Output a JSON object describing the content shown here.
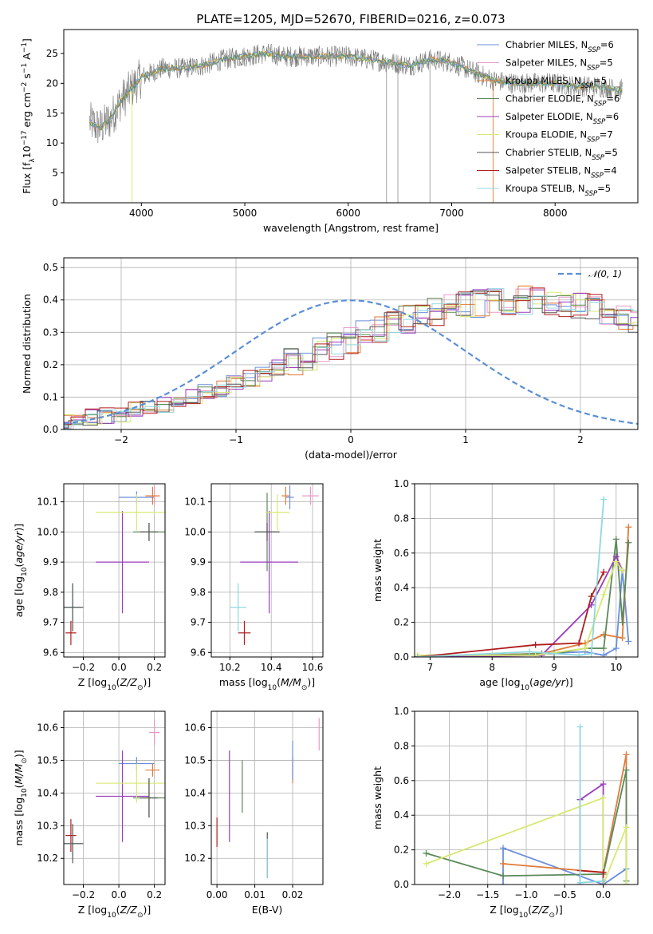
{
  "figure": {
    "title": "PLATE=1205, MJD=52670, FIBERID=0216, z=0.073"
  },
  "models": [
    {
      "label": "Chabrier MILES, N_SSP=6",
      "label_main": "Chabrier MILES, N",
      "label_sub": "SSP",
      "label_tail": "=6",
      "color": "#6a8fdc"
    },
    {
      "label": "Salpeter MILES, N_SSP=5",
      "label_main": "Salpeter MILES, N",
      "label_sub": "SSP",
      "label_tail": "=5",
      "color": "#e89ac8"
    },
    {
      "label": "Kroupa MILES, N_SSP=5",
      "label_main": "Kroupa MILES, N",
      "label_sub": "SSP",
      "label_tail": "=5",
      "color": "#e07b39"
    },
    {
      "label": "Chabrier ELODIE, N_SSP=6",
      "label_main": "Chabrier ELODIE, N",
      "label_sub": "SSP",
      "label_tail": "=6",
      "color": "#5b8a5a"
    },
    {
      "label": "Salpeter ELODIE, N_SSP=6",
      "label_main": "Salpeter ELODIE, N",
      "label_sub": "SSP",
      "label_tail": "=6",
      "color": "#9a3dbf"
    },
    {
      "label": "Kroupa ELODIE, N_SSP=7",
      "label_main": "Kroupa ELODIE, N",
      "label_sub": "SSP",
      "label_tail": "=7",
      "color": "#d8e870"
    },
    {
      "label": "Chabrier STELIB, N_SSP=5",
      "label_main": "Chabrier STELIB, N",
      "label_sub": "SSP",
      "label_tail": "=5",
      "color": "#555555"
    },
    {
      "label": "Salpeter STELIB, N_SSP=4",
      "label_main": "Salpeter STELIB, N",
      "label_sub": "SSP",
      "label_tail": "=4",
      "color": "#b01c1c"
    },
    {
      "label": "Kroupa STELIB, N_SSP=5",
      "label_main": "Kroupa STELIB, N",
      "label_sub": "SSP",
      "label_tail": "=5",
      "color": "#8fd8e0"
    }
  ],
  "chart_data": [
    {
      "id": "spectrum",
      "type": "line",
      "title": "PLATE=1205, MJD=52670, FIBERID=0216, z=0.073",
      "xlabel": "wavelength [Angstrom, rest frame]",
      "ylabel": "Flux [f_λ10^-17 erg cm^-2 s^-1 A^-1]",
      "xlim": [
        3250,
        8800
      ],
      "ylim": [
        0,
        29
      ],
      "xticks": [
        4000,
        5000,
        6000,
        7000,
        8000
      ],
      "yticks": [
        0,
        5,
        10,
        15,
        20,
        25
      ],
      "grid": false,
      "legend": "upper right",
      "continuum": {
        "x": [
          3500,
          3600,
          3700,
          3800,
          3900,
          4000,
          4200,
          4400,
          4600,
          4800,
          5000,
          5200,
          5400,
          5600,
          5800,
          6000,
          6200,
          6400,
          6600,
          6800,
          7000,
          7200,
          7400,
          7600,
          7800,
          8000,
          8200,
          8400,
          8600
        ],
        "y": [
          13.5,
          12.5,
          14,
          17,
          19,
          21,
          22.5,
          22.5,
          23,
          24,
          24.5,
          25,
          24.5,
          24.5,
          24.5,
          24.5,
          24,
          23.5,
          23,
          24,
          23.5,
          22,
          20.5,
          20,
          20,
          20,
          19.5,
          19.5,
          19
        ]
      }
    },
    {
      "id": "residuals",
      "type": "histogram",
      "xlabel": "(data-model)/error",
      "ylabel": "Normed distribution",
      "xlim": [
        -2.5,
        2.5
      ],
      "ylim": [
        0,
        0.53
      ],
      "xticks": [
        -2,
        -1,
        0,
        1,
        2
      ],
      "yticks": [
        0.0,
        0.1,
        0.2,
        0.3,
        0.4,
        0.5
      ],
      "grid": true,
      "legend": "upper right",
      "reference_curve": {
        "label": "𝒩(0, 1)",
        "color": "#5b8fd6"
      },
      "bin_width": 0.125,
      "hist_template": [
        0.027,
        0.032,
        0.037,
        0.044,
        0.05,
        0.058,
        0.066,
        0.076,
        0.087,
        0.099,
        0.112,
        0.126,
        0.14,
        0.156,
        0.172,
        0.189,
        0.206,
        0.224,
        0.241,
        0.259,
        0.276,
        0.293,
        0.309,
        0.324,
        0.339,
        0.352,
        0.364,
        0.375,
        0.384,
        0.391,
        0.396,
        0.399,
        0.4,
        0.399,
        0.396,
        0.391,
        0.384,
        0.375,
        0.364,
        0.352,
        0.339,
        0.324,
        0.309,
        0.293,
        0.276,
        0.259,
        0.241,
        0.224,
        0.206,
        0.189,
        0.172,
        0.156,
        0.14,
        0.126,
        0.112,
        0.099,
        0.087,
        0.076,
        0.066,
        0.058,
        0.05,
        0.044,
        0.037,
        0.032,
        0.027
      ]
    },
    {
      "id": "age-vs-Z",
      "type": "scatter",
      "xlabel": "Z [log10(Z/Z⊙)]",
      "ylabel": "age [log10(age/yr)]",
      "xlim": [
        -0.31,
        0.26
      ],
      "ylim": [
        9.585,
        10.16
      ],
      "xticks": [
        -0.2,
        0.0,
        0.2
      ],
      "yticks": [
        9.6,
        9.7,
        9.8,
        9.9,
        10.0,
        10.1
      ],
      "grid": true,
      "points": [
        {
          "model": 0,
          "x": 0.1,
          "y": 10.115,
          "xerr": 0.1,
          "yerr": 0.02
        },
        {
          "model": 1,
          "x": 0.2,
          "y": 10.12,
          "xerr": 0.03,
          "yerr": 0.03
        },
        {
          "model": 2,
          "x": 0.19,
          "y": 10.12,
          "xerr": 0.04,
          "yerr": 0.03
        },
        {
          "model": 3,
          "x": 0.17,
          "y": 10.0,
          "xerr": 0.09,
          "yerr": 0.03
        },
        {
          "model": 4,
          "x": 0.02,
          "y": 9.9,
          "xerr": 0.15,
          "yerr": 0.17
        },
        {
          "model": 5,
          "x": 0.1,
          "y": 10.065,
          "xerr": 0.23,
          "yerr": 0.06
        },
        {
          "model": 6,
          "x": 0.17,
          "y": 10.0,
          "xerr": 0.05,
          "yerr": 0.03
        },
        {
          "model": 7,
          "x": -0.27,
          "y": 9.665,
          "xerr": 0.03,
          "yerr": 0.04
        },
        {
          "model": 8,
          "x": -0.26,
          "y": 9.75,
          "xerr": 0.05,
          "yerr": 0.08
        },
        {
          "model": 6,
          "x": -0.26,
          "y": 9.75,
          "xerr": 0.06,
          "yerr": 0.08
        }
      ]
    },
    {
      "id": "age-vs-mass",
      "type": "scatter",
      "xlabel": "mass [log10(M/M⊙)]",
      "ylabel": "",
      "xlim": [
        10.11,
        10.65
      ],
      "ylim": [
        9.585,
        10.16
      ],
      "xticks": [
        10.2,
        10.4,
        10.6
      ],
      "yticks": [
        9.6,
        9.7,
        9.8,
        9.9,
        10.0,
        10.1
      ],
      "grid": true,
      "points": [
        {
          "model": 0,
          "x": 10.49,
          "y": 10.115,
          "xerr": 0.02,
          "yerr": 0.04
        },
        {
          "model": 1,
          "x": 10.59,
          "y": 10.12,
          "xerr": 0.04,
          "yerr": 0.03
        },
        {
          "model": 2,
          "x": 10.47,
          "y": 10.12,
          "xerr": 0.02,
          "yerr": 0.03
        },
        {
          "model": 3,
          "x": 10.38,
          "y": 10.0,
          "xerr": 0.06,
          "yerr": 0.13
        },
        {
          "model": 4,
          "x": 10.39,
          "y": 9.9,
          "xerr": 0.14,
          "yerr": 0.17
        },
        {
          "model": 5,
          "x": 10.43,
          "y": 10.065,
          "xerr": 0.06,
          "yerr": 0.06
        },
        {
          "model": 6,
          "x": 10.38,
          "y": 10.0,
          "xerr": 0.06,
          "yerr": 0.03
        },
        {
          "model": 7,
          "x": 10.27,
          "y": 9.665,
          "xerr": 0.03,
          "yerr": 0.04
        },
        {
          "model": 8,
          "x": 10.24,
          "y": 9.75,
          "xerr": 0.04,
          "yerr": 0.08
        }
      ]
    },
    {
      "id": "weight-vs-age",
      "type": "line",
      "xlabel": "age [log10(age/yr)]",
      "ylabel": "mass weight",
      "xlim": [
        6.75,
        10.35
      ],
      "ylim": [
        0,
        1.0
      ],
      "xticks": [
        7,
        8,
        9,
        10
      ],
      "yticks": [
        0.0,
        0.2,
        0.4,
        0.6,
        0.8,
        1.0
      ],
      "grid": true,
      "series": [
        {
          "model": 0,
          "x": [
            6.8,
            8.8,
            9.5,
            9.8,
            10.0,
            10.1,
            10.2
          ],
          "y": [
            0.0,
            0.02,
            0.03,
            0.01,
            0.05,
            0.5,
            0.09
          ]
        },
        {
          "model": 2,
          "x": [
            6.8,
            8.8,
            9.5,
            9.8,
            10.1,
            10.2
          ],
          "y": [
            0.0,
            0.02,
            0.08,
            0.13,
            0.11,
            0.75
          ]
        },
        {
          "model": 3,
          "x": [
            6.8,
            9.0,
            9.5,
            9.8,
            10.0,
            10.1,
            10.2
          ],
          "y": [
            0.0,
            0.02,
            0.05,
            0.05,
            0.68,
            0.2,
            0.66
          ]
        },
        {
          "model": 4,
          "x": [
            6.8,
            8.8,
            9.6,
            10.0,
            10.1
          ],
          "y": [
            0.0,
            0.01,
            0.3,
            0.58,
            0.5
          ]
        },
        {
          "model": 5,
          "x": [
            6.8,
            8.7,
            9.5,
            9.8,
            10.0,
            10.1
          ],
          "y": [
            0.01,
            0.01,
            0.05,
            0.36,
            0.55,
            0.5
          ]
        },
        {
          "model": 7,
          "x": [
            6.8,
            8.7,
            9.4,
            9.6,
            9.8
          ],
          "y": [
            0.0,
            0.07,
            0.08,
            0.35,
            0.49
          ]
        },
        {
          "model": 8,
          "x": [
            6.8,
            8.6,
            9.4,
            9.6,
            9.8
          ],
          "y": [
            0.0,
            0.03,
            0.01,
            0.02,
            0.91
          ]
        }
      ]
    },
    {
      "id": "mass-vs-Z",
      "type": "scatter",
      "xlabel": "Z [log10(Z/Z⊙)]",
      "ylabel": "mass [log10(M/M⊙)]",
      "xlim": [
        -0.31,
        0.26
      ],
      "ylim": [
        10.12,
        10.65
      ],
      "xticks": [
        -0.2,
        0.0,
        0.2
      ],
      "yticks": [
        10.2,
        10.3,
        10.4,
        10.5,
        10.6
      ],
      "grid": true,
      "points": [
        {
          "model": 0,
          "x": 0.1,
          "y": 10.49,
          "xerr": 0.1,
          "yerr": 0.02
        },
        {
          "model": 1,
          "x": 0.2,
          "y": 10.585,
          "xerr": 0.03,
          "yerr": 0.04
        },
        {
          "model": 2,
          "x": 0.19,
          "y": 10.47,
          "xerr": 0.04,
          "yerr": 0.02
        },
        {
          "model": 3,
          "x": 0.17,
          "y": 10.385,
          "xerr": 0.09,
          "yerr": 0.06
        },
        {
          "model": 4,
          "x": 0.02,
          "y": 10.39,
          "xerr": 0.15,
          "yerr": 0.14
        },
        {
          "model": 5,
          "x": 0.1,
          "y": 10.43,
          "xerr": 0.23,
          "yerr": 0.06
        },
        {
          "model": 6,
          "x": 0.17,
          "y": 10.385,
          "xerr": 0.05,
          "yerr": 0.06
        },
        {
          "model": 7,
          "x": -0.27,
          "y": 10.27,
          "xerr": 0.03,
          "yerr": 0.05
        },
        {
          "model": 8,
          "x": -0.26,
          "y": 10.245,
          "xerr": 0.05,
          "yerr": 0.04
        },
        {
          "model": 6,
          "x": -0.26,
          "y": 10.245,
          "xerr": 0.06,
          "yerr": 0.06
        }
      ]
    },
    {
      "id": "mass-vs-EBV",
      "type": "scatter",
      "xlabel": "E(B-V)",
      "ylabel": "",
      "xlim": [
        -0.0015,
        0.028
      ],
      "ylim": [
        10.12,
        10.65
      ],
      "xticks": [
        0.0,
        0.01,
        0.02
      ],
      "xtick_labels": [
        "0.00",
        "0.01",
        "0.02"
      ],
      "yticks": [
        10.2,
        10.3,
        10.4,
        10.5,
        10.6
      ],
      "grid": true,
      "points": [
        {
          "model": 7,
          "x": 0.0,
          "y": 10.28,
          "xerr": 0,
          "yerr": 0.045
        },
        {
          "model": 4,
          "x": 0.0033,
          "y": 10.39,
          "xerr": 0,
          "yerr": 0.14
        },
        {
          "model": 5,
          "x": 0.0067,
          "y": 10.41,
          "xerr": 0,
          "yerr": 0.07
        },
        {
          "model": 3,
          "x": 0.0067,
          "y": 10.42,
          "xerr": 0,
          "yerr": 0.08
        },
        {
          "model": 6,
          "x": 0.0133,
          "y": 10.21,
          "xerr": 0,
          "yerr": 0.07
        },
        {
          "model": 8,
          "x": 0.0133,
          "y": 10.2,
          "xerr": 0,
          "yerr": 0.06
        },
        {
          "model": 2,
          "x": 0.02,
          "y": 10.47,
          "xerr": 0,
          "yerr": 0.04
        },
        {
          "model": 0,
          "x": 0.02,
          "y": 10.5,
          "xerr": 0,
          "yerr": 0.06
        },
        {
          "model": 1,
          "x": 0.027,
          "y": 10.58,
          "xerr": 0,
          "yerr": 0.05
        }
      ]
    },
    {
      "id": "weight-vs-Z",
      "type": "line",
      "xlabel": "Z [log10(Z/Z⊙)]",
      "ylabel": "mass weight",
      "xlim": [
        -2.45,
        0.45
      ],
      "ylim": [
        0,
        1.0
      ],
      "xticks": [
        -2.0,
        -1.5,
        -1.0,
        -0.5,
        0.0
      ],
      "xtick_labels": [
        "−2.0",
        "−1.5",
        "−1.0",
        "−0.5",
        "0.0"
      ],
      "yticks": [
        0.0,
        0.2,
        0.4,
        0.6,
        0.8,
        1.0
      ],
      "grid": true,
      "series": [
        {
          "model": 0,
          "x": [
            -1.3,
            -1.3,
            0.0,
            0.3,
            0.3
          ],
          "y": [
            0.0,
            0.21,
            0.0,
            0.09,
            0.0
          ]
        },
        {
          "model": 2,
          "x": [
            -1.3,
            0.0,
            0.3,
            0.3
          ],
          "y": [
            0.12,
            0.07,
            0.75,
            0.0
          ]
        },
        {
          "model": 3,
          "x": [
            -2.3,
            -1.3,
            0.0,
            0.3,
            0.3
          ],
          "y": [
            0.18,
            0.05,
            0.06,
            0.66,
            0.02
          ]
        },
        {
          "model": 4,
          "x": [
            -0.3,
            -0.3,
            0.0,
            0.0
          ],
          "y": [
            0.0,
            0.49,
            0.58,
            0.0
          ]
        },
        {
          "model": 5,
          "x": [
            -2.3,
            0.0,
            0.0,
            0.3,
            0.3
          ],
          "y": [
            0.12,
            0.5,
            0.0,
            0.33,
            0.0
          ]
        },
        {
          "model": 7,
          "x": [
            -0.3,
            0.0,
            0.0
          ],
          "y": [
            0.08,
            0.07,
            0.0
          ]
        },
        {
          "model": 8,
          "x": [
            -0.3,
            -0.3,
            0.0
          ],
          "y": [
            0.91,
            0.01,
            0.02
          ]
        }
      ]
    }
  ]
}
